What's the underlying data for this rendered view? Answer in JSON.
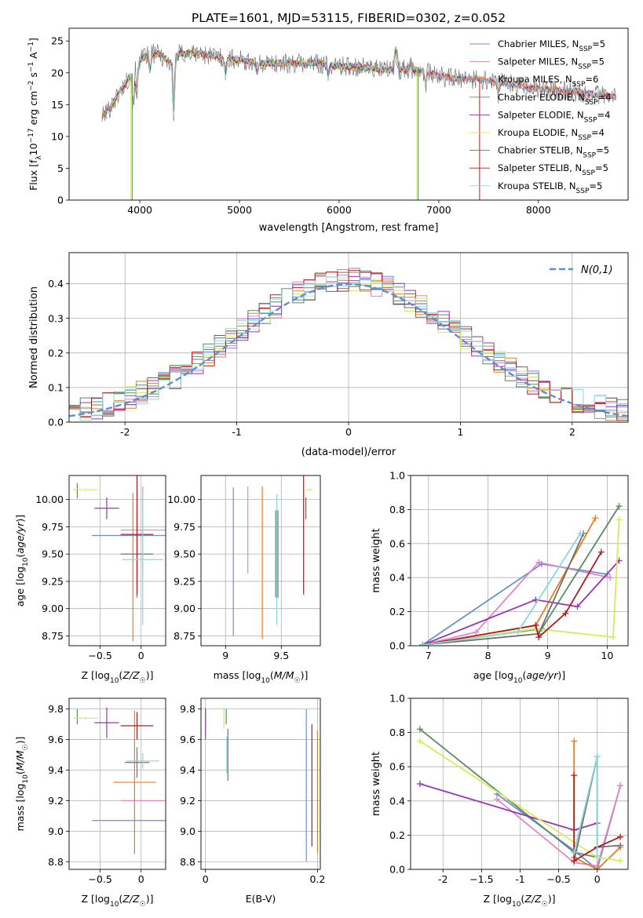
{
  "figure": {
    "title": "PLATE=1601, MJD=53115, FIBERID=0302, z=0.052"
  },
  "colors": {
    "Chabrier MILES": "#6b8fd6",
    "Salpeter MILES": "#e383c8",
    "Kroupa MILES": "#e87d22",
    "Chabrier ELODIE": "#5a8a60",
    "Salpeter ELODIE": "#9a36b0",
    "Kroupa ELODIE": "#d7ea5a",
    "Chabrier STELIB": "#707070",
    "Salpeter STELIB": "#b01c1c",
    "Kroupa STELIB": "#86d8de",
    "gaussian": "#5b8fd6"
  },
  "chart_data": [
    {
      "id": "spectrum",
      "type": "line",
      "title": "PLATE=1601, MJD=53115, FIBERID=0302, z=0.052",
      "xlabel": "wavelength [Angstrom, rest frame]",
      "ylabel": "Flux [f_λ 10^-17 erg cm^-2 s^-1 A^-1]",
      "xlim": [
        3290,
        8900
      ],
      "ylim": [
        0,
        27
      ],
      "xticks": [
        4000,
        5000,
        6000,
        7000,
        8000
      ],
      "yticks": [
        0,
        5,
        10,
        15,
        20,
        25
      ],
      "grid": false,
      "legend_position": "top-right",
      "continuum": {
        "x": [
          3620,
          3700,
          3800,
          3900,
          4000,
          4100,
          4200,
          4300,
          4400,
          4600,
          4800,
          5000,
          5200,
          5400,
          5600,
          5800,
          6000,
          6200,
          6400,
          6600,
          6800,
          7000,
          7200,
          7400,
          7600,
          7800,
          8000,
          8200,
          8400,
          8600,
          8780
        ],
        "y": [
          13.0,
          14.5,
          17.0,
          19.5,
          22.0,
          23.0,
          23.0,
          21.5,
          23.0,
          23.0,
          22.5,
          22.0,
          21.5,
          21.5,
          21.5,
          21.5,
          21.0,
          21.0,
          20.5,
          20.5,
          20.5,
          19.5,
          19.0,
          19.0,
          18.5,
          18.0,
          17.5,
          17.3,
          17.0,
          16.5,
          16.2
        ]
      },
      "series": [
        {
          "name": "Chabrier MILES",
          "nssp": "5"
        },
        {
          "name": "Salpeter MILES",
          "nssp": "5"
        },
        {
          "name": "Kroupa MILES",
          "nssp": "6"
        },
        {
          "name": "Chabrier ELODIE",
          "nssp": "4"
        },
        {
          "name": "Salpeter ELODIE",
          "nssp": "4"
        },
        {
          "name": "Kroupa ELODIE",
          "nssp": "4"
        },
        {
          "name": "Chabrier STELIB",
          "nssp": "5"
        },
        {
          "name": "Salpeter STELIB",
          "nssp": "5"
        },
        {
          "name": "Kroupa STELIB",
          "nssp": "5"
        }
      ]
    },
    {
      "id": "residuals",
      "type": "line",
      "xlabel": "(data-model)/error",
      "ylabel": "Normed distribution",
      "xlim": [
        -2.5,
        2.5
      ],
      "ylim": [
        0,
        0.49
      ],
      "xticks": [
        -2,
        -1,
        0,
        1,
        2
      ],
      "yticks": [
        0.0,
        0.1,
        0.2,
        0.3,
        0.4
      ],
      "grid": true,
      "legend_position": "top-right",
      "legend": "N(0,1)",
      "histogram_bin_width": 0.1,
      "reference_curve": "N(0,1)"
    },
    {
      "id": "age_vs_Z",
      "type": "scatter",
      "xlabel": "Z [log10(Z/Z_sun)]",
      "ylabel": "age [log10(age/yr)]",
      "xlim": [
        -0.88,
        0.3
      ],
      "ylim": [
        8.66,
        10.22
      ],
      "xticks": [
        -0.5,
        0.0
      ],
      "yticks": [
        8.75,
        9.0,
        9.25,
        9.5,
        9.75,
        10.0
      ],
      "grid": true,
      "points": [
        {
          "model": "Chabrier MILES",
          "x": -0.05,
          "xerr": 0.55,
          "y": 9.67,
          "yerr": 0.4
        },
        {
          "model": "Salpeter MILES",
          "x": 0.02,
          "xerr": 0.27,
          "y": 9.72,
          "yerr": 0.4
        },
        {
          "model": "Kroupa MILES",
          "x": -0.1,
          "xerr": 0.0,
          "y": 9.38,
          "yerr": 0.68
        },
        {
          "model": "Chabrier ELODIE",
          "x": -0.78,
          "xerr": 0.0,
          "y": 10.08,
          "yerr": 0.07
        },
        {
          "model": "Salpeter ELODIE",
          "x": -0.42,
          "xerr": 0.15,
          "y": 9.92,
          "yerr": 0.1
        },
        {
          "model": "Kroupa ELODIE",
          "x": -0.68,
          "xerr": 0.15,
          "y": 10.09,
          "yerr": 0.01
        },
        {
          "model": "Chabrier STELIB",
          "x": -0.05,
          "xerr": 0.2,
          "y": 9.5,
          "yerr": 0.4
        },
        {
          "model": "Salpeter STELIB",
          "x": -0.05,
          "xerr": 0.2,
          "y": 9.68,
          "yerr": 0.55
        },
        {
          "model": "Kroupa STELIB",
          "x": 0.02,
          "xerr": 0.25,
          "y": 9.45,
          "yerr": 0.6
        }
      ]
    },
    {
      "id": "age_vs_mass",
      "type": "scatter",
      "xlabel": "mass [log10(M/M_sun)]",
      "ylabel": "",
      "xlim": [
        8.78,
        9.85
      ],
      "ylim": [
        8.66,
        10.22
      ],
      "xticks": [
        9.0,
        9.5
      ],
      "yticks": [
        8.75,
        9.0,
        9.25,
        9.5,
        9.75,
        10.0
      ],
      "grid": true,
      "points": [
        {
          "model": "Chabrier MILES",
          "x": 9.07,
          "xerr": 0.0,
          "y": 9.43,
          "yerr": 0.68
        },
        {
          "model": "Salpeter MILES",
          "x": 9.2,
          "xerr": 0.0,
          "y": 9.72,
          "yerr": 0.4
        },
        {
          "model": "Kroupa MILES",
          "x": 9.33,
          "xerr": 0.0,
          "y": 9.42,
          "yerr": 0.7
        },
        {
          "model": "Chabrier ELODIE",
          "x": 9.45,
          "xerr": 0.0,
          "y": 9.5,
          "yerr": 0.4
        },
        {
          "model": "Salpeter ELODIE",
          "x": 9.72,
          "xerr": 0.0,
          "y": 9.92,
          "yerr": 0.1
        },
        {
          "model": "Kroupa ELODIE",
          "x": 9.75,
          "xerr": 0.03,
          "y": 10.09,
          "yerr": 0.01
        },
        {
          "model": "Chabrier STELIB",
          "x": 9.47,
          "xerr": 0.0,
          "y": 9.5,
          "yerr": 0.4
        },
        {
          "model": "Salpeter STELIB",
          "x": 9.7,
          "xerr": 0.0,
          "y": 9.68,
          "yerr": 0.55
        },
        {
          "model": "Kroupa STELIB",
          "x": 9.46,
          "xerr": 0.0,
          "y": 9.45,
          "yerr": 0.6
        }
      ]
    },
    {
      "id": "mass_weight_vs_age",
      "type": "line",
      "xlabel": "age [log10(age/yr)]",
      "ylabel": "mass weight",
      "xlim": [
        6.7,
        10.35
      ],
      "ylim": [
        0,
        1.0
      ],
      "xticks": [
        7,
        8,
        9,
        10
      ],
      "yticks": [
        0.0,
        0.2,
        0.4,
        0.6,
        0.8,
        1.0
      ],
      "grid": true,
      "series": [
        {
          "model": "Chabrier MILES",
          "x": [
            6.9,
            8.9,
            10.0
          ],
          "y": [
            0.005,
            0.48,
            0.42
          ]
        },
        {
          "model": "Salpeter MILES",
          "x": [
            6.9,
            7.8,
            8.85,
            10.05
          ],
          "y": [
            0.005,
            0.08,
            0.49,
            0.4
          ]
        },
        {
          "model": "Kroupa MILES",
          "x": [
            6.9,
            8.8,
            9.8
          ],
          "y": [
            0.005,
            0.12,
            0.75
          ]
        },
        {
          "model": "Chabrier ELODIE",
          "x": [
            6.9,
            8.9,
            10.2
          ],
          "y": [
            0.005,
            0.1,
            0.82
          ]
        },
        {
          "model": "Salpeter ELODIE",
          "x": [
            6.9,
            8.8,
            9.5,
            10.2
          ],
          "y": [
            0.005,
            0.27,
            0.23,
            0.5
          ]
        },
        {
          "model": "Kroupa ELODIE",
          "x": [
            6.9,
            8.8,
            10.1,
            10.2
          ],
          "y": [
            0.005,
            0.1,
            0.05,
            0.74
          ]
        },
        {
          "model": "Chabrier STELIB",
          "x": [
            6.9,
            8.85,
            9.6
          ],
          "y": [
            0.005,
            0.07,
            0.66
          ]
        },
        {
          "model": "Salpeter STELIB",
          "x": [
            6.9,
            8.8,
            8.85,
            9.3,
            9.9
          ],
          "y": [
            0.005,
            0.12,
            0.05,
            0.19,
            0.55
          ]
        },
        {
          "model": "Kroupa STELIB",
          "x": [
            6.9,
            8.5,
            9.55
          ],
          "y": [
            0.005,
            0.08,
            0.66
          ]
        }
      ]
    },
    {
      "id": "mass_vs_Z",
      "type": "scatter",
      "xlabel": "Z [log10(Z/Z_sun)]",
      "ylabel": "mass [log10(M/M_sun)]",
      "xlim": [
        -0.88,
        0.3
      ],
      "ylim": [
        8.75,
        9.87
      ],
      "xticks": [
        -0.5,
        0.0
      ],
      "yticks": [
        8.8,
        9.0,
        9.2,
        9.4,
        9.6,
        9.8
      ],
      "grid": true,
      "points": [
        {
          "model": "Chabrier MILES",
          "x": -0.15,
          "xerr": 0.45,
          "y": 9.07,
          "yerr": 0.0
        },
        {
          "model": "Salpeter MILES",
          "x": 0.02,
          "xerr": 0.27,
          "y": 9.2,
          "yerr": 0.0
        },
        {
          "model": "Kroupa MILES",
          "x": -0.08,
          "xerr": 0.26,
          "y": 9.32,
          "yerr": 0.47
        },
        {
          "model": "Chabrier ELODIE",
          "x": -0.78,
          "xerr": 0.0,
          "y": 9.75,
          "yerr": 0.05
        },
        {
          "model": "Salpeter ELODIE",
          "x": -0.42,
          "xerr": 0.15,
          "y": 9.71,
          "yerr": 0.1
        },
        {
          "model": "Kroupa ELODIE",
          "x": -0.68,
          "xerr": 0.15,
          "y": 9.74,
          "yerr": 0.01
        },
        {
          "model": "Chabrier STELIB",
          "x": -0.05,
          "xerr": 0.15,
          "y": 9.45,
          "yerr": 0.1
        },
        {
          "model": "Salpeter STELIB",
          "x": -0.05,
          "xerr": 0.2,
          "y": 9.69,
          "yerr": 0.09
        },
        {
          "model": "Kroupa STELIB",
          "x": 0.02,
          "xerr": 0.2,
          "y": 9.46,
          "yerr": 0.05
        }
      ]
    },
    {
      "id": "mass_vs_ebv",
      "type": "scatter",
      "xlabel": "E(B-V)",
      "ylabel": "",
      "xlim": [
        -0.008,
        0.205
      ],
      "ylim": [
        8.75,
        9.87
      ],
      "xticks": [
        0.0,
        0.2
      ],
      "yticks": [
        8.8,
        9.0,
        9.2,
        9.4,
        9.6,
        9.8
      ],
      "grid": true,
      "points": [
        {
          "model": "Chabrier MILES",
          "x": 0.18,
          "xerr": 0.0,
          "y": 9.3,
          "yerr": 0.5
        },
        {
          "model": "Salpeter MILES",
          "x": 0.0,
          "xerr": 0.0,
          "y": 9.72,
          "yerr": 0.09
        },
        {
          "model": "Kroupa MILES",
          "x": 0.2,
          "xerr": 0.0,
          "y": 9.26,
          "yerr": 0.4
        },
        {
          "model": "Chabrier ELODIE",
          "x": 0.037,
          "xerr": 0.0,
          "y": 9.75,
          "yerr": 0.05
        },
        {
          "model": "Salpeter ELODIE",
          "x": 0.0,
          "xerr": 0.0,
          "y": 9.7,
          "yerr": 0.1
        },
        {
          "model": "Kroupa ELODIE",
          "x": 0.033,
          "xerr": 0.0,
          "y": 9.74,
          "yerr": 0.07
        },
        {
          "model": "Chabrier STELIB",
          "x": 0.04,
          "xerr": 0.0,
          "y": 9.5,
          "yerr": 0.17
        },
        {
          "model": "Salpeter STELIB",
          "x": 0.19,
          "xerr": 0.0,
          "y": 9.3,
          "yerr": 0.4
        },
        {
          "model": "Kroupa STELIB",
          "x": 0.038,
          "xerr": 0.0,
          "y": 9.5,
          "yerr": 0.12
        }
      ]
    },
    {
      "id": "mass_weight_vs_Z",
      "type": "line",
      "xlabel": "Z [log10(Z/Z_sun)]",
      "ylabel": "mass weight",
      "xlim": [
        -2.42,
        0.4
      ],
      "ylim": [
        0,
        1.0
      ],
      "xticks": [
        -2.0,
        -1.5,
        -1.0,
        -0.5,
        0.0
      ],
      "yticks": [
        0.0,
        0.2,
        0.4,
        0.6,
        0.8,
        1.0
      ],
      "grid": true,
      "series": [
        {
          "model": "Chabrier MILES",
          "x": [
            -1.3,
            -0.3,
            0.0,
            0.3
          ],
          "y": [
            0.44,
            0.11,
            0.0,
            0.49
          ]
        },
        {
          "model": "Salpeter MILES",
          "x": [
            -1.3,
            -0.3,
            0.0,
            0.3
          ],
          "y": [
            0.41,
            0.04,
            0.02,
            0.49
          ]
        },
        {
          "model": "Kroupa MILES",
          "x": [
            -0.3,
            -0.3,
            0.0,
            0.3
          ],
          "y": [
            0.75,
            0.07,
            0.0,
            0.13
          ]
        },
        {
          "model": "Chabrier ELODIE",
          "x": [
            -2.3,
            -0.3,
            0.0
          ],
          "y": [
            0.82,
            0.1,
            0.07
          ]
        },
        {
          "model": "Salpeter ELODIE",
          "x": [
            -2.3,
            -0.3,
            0.0
          ],
          "y": [
            0.5,
            0.23,
            0.27
          ]
        },
        {
          "model": "Kroupa ELODIE",
          "x": [
            -2.3,
            0.0,
            0.3
          ],
          "y": [
            0.75,
            0.07,
            0.05
          ]
        },
        {
          "model": "Chabrier STELIB",
          "x": [
            -0.3,
            0.0,
            0.0,
            0.3
          ],
          "y": [
            0.05,
            0.66,
            0.13,
            0.14
          ]
        },
        {
          "model": "Salpeter STELIB",
          "x": [
            -0.3,
            -0.3,
            0.0,
            0.3
          ],
          "y": [
            0.55,
            0.05,
            0.13,
            0.19
          ]
        },
        {
          "model": "Kroupa STELIB",
          "x": [
            -0.3,
            0.0,
            0.0
          ],
          "y": [
            0.1,
            0.66,
            0.08
          ]
        }
      ]
    }
  ]
}
